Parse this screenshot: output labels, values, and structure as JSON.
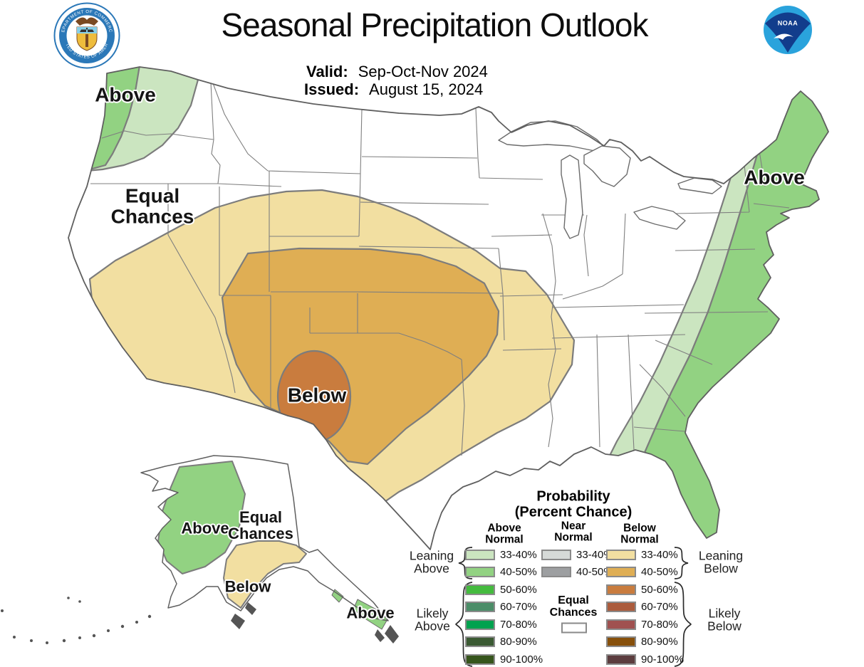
{
  "header": {
    "title": "Seasonal Precipitation Outlook",
    "valid_label": "Valid:",
    "valid_value": "Sep-Oct-Nov 2024",
    "issued_label": "Issued:",
    "issued_value": "August 15, 2024",
    "noaa_logo_text": "NOAA",
    "doc_seal": {
      "top_text": "DEPARTMENT OF COMMERCE",
      "bottom_text": "UNITED STATES OF AMERICA"
    }
  },
  "map": {
    "labels": {
      "pnw_above": "Above",
      "west_equal_line1": "Equal",
      "west_equal_line2": "Chances",
      "central_below": "Below",
      "northeast_above": "Above",
      "alaska_above": "Above",
      "alaska_equal_line1": "Equal",
      "alaska_equal_line2": "Chances",
      "alaska_below": "Below",
      "alaska_panhandle_above": "Above"
    },
    "region_colors": {
      "land": "#ffffff",
      "above_33_40": "#cbe5c0",
      "above_40_50": "#92d282",
      "below_33_40": "#f2dfa1",
      "below_40_50": "#dfae54",
      "below_50_60": "#c97c3e"
    }
  },
  "legend": {
    "title_line1": "Probability",
    "title_line2": "(Percent Chance)",
    "columns": [
      {
        "header_line1": "Above",
        "header_line2": "Normal"
      },
      {
        "header_line1": "Near",
        "header_line2": "Normal"
      },
      {
        "header_line1": "Below",
        "header_line2": "Normal"
      }
    ],
    "above_rows": [
      {
        "range": "33-40%",
        "color": "#cbe5c0"
      },
      {
        "range": "40-50%",
        "color": "#92d282"
      },
      {
        "range": "50-60%",
        "color": "#44bb3e"
      },
      {
        "range": "60-70%",
        "color": "#4b8d68"
      },
      {
        "range": "70-80%",
        "color": "#00a24f"
      },
      {
        "range": "80-90%",
        "color": "#3b5a33"
      },
      {
        "range": "90-100%",
        "color": "#36551c"
      }
    ],
    "near_rows": [
      {
        "range": "33-40%",
        "color": "#d6dad8"
      },
      {
        "range": "40-50%",
        "color": "#9d9fa1"
      }
    ],
    "below_rows": [
      {
        "range": "33-40%",
        "color": "#f2dfa1"
      },
      {
        "range": "40-50%",
        "color": "#dfae54"
      },
      {
        "range": "50-60%",
        "color": "#c97c3e"
      },
      {
        "range": "60-70%",
        "color": "#ab5b3c"
      },
      {
        "range": "70-80%",
        "color": "#a05150"
      },
      {
        "range": "80-90%",
        "color": "#87500b"
      },
      {
        "range": "90-100%",
        "color": "#5c3d3f"
      }
    ],
    "equal_chances_line1": "Equal",
    "equal_chances_line2": "Chances",
    "equal_box_color": "#ffffff",
    "side_labels": {
      "leaning_above_line1": "Leaning",
      "leaning_above_line2": "Above",
      "likely_above_line1": "Likely",
      "likely_above_line2": "Above",
      "leaning_below_line1": "Leaning",
      "leaning_below_line2": "Below",
      "likely_below_line1": "Likely",
      "likely_below_line2": "Below"
    }
  }
}
